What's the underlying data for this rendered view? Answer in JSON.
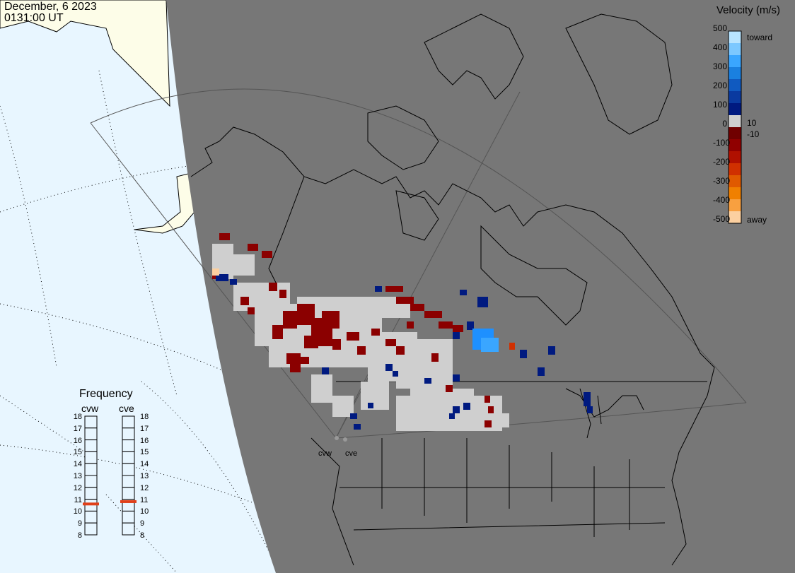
{
  "header": {
    "date": "December, 6 2023",
    "time": "0131:00 UT"
  },
  "colorbar": {
    "title": "Velocity (m/s)",
    "ticks": [
      "500",
      "400",
      "300",
      "200",
      "100",
      "0",
      "-100",
      "-200",
      "-300",
      "-400",
      "-500"
    ],
    "toward_label": "toward",
    "away_label": "away",
    "threshold_pos": "10",
    "threshold_neg": "-10",
    "colors": [
      "#b8e4ff",
      "#7cc8ff",
      "#3aa6ff",
      "#1a80e0",
      "#105ac0",
      "#0a3aa0",
      "#001a80",
      "#cfcfcf",
      "#700000",
      "#900000",
      "#b01000",
      "#d03000",
      "#e05a00",
      "#f08000",
      "#f8a040",
      "#fcd0a0"
    ]
  },
  "frequency_panel": {
    "title": "Frequency",
    "radars": [
      {
        "name": "cvw",
        "freq_mhz": 10.6
      },
      {
        "name": "cve",
        "freq_mhz": 10.8
      }
    ],
    "scale": [
      "18",
      "17",
      "16",
      "15",
      "14",
      "13",
      "12",
      "11",
      "10",
      "9",
      "8"
    ]
  },
  "sites": {
    "cvw": "cvw",
    "cve": "cve"
  },
  "map": {
    "colors": {
      "night": "#777777",
      "ocean_day": "#e8f6ff",
      "land_day": "#fdfde8",
      "ground_scatter": "#cfcfcf",
      "toward_dark": "#001a80",
      "toward_light": "#1e90ff",
      "away_dark": "#8b0000"
    }
  }
}
